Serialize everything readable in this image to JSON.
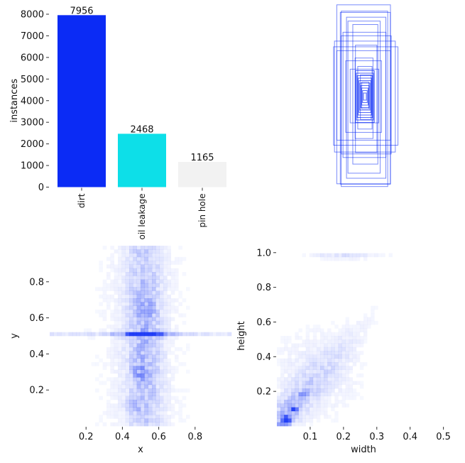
{
  "chart_data": [
    {
      "type": "bar",
      "categories": [
        "dirt",
        "oil leakage",
        "pin hole"
      ],
      "values": [
        7956,
        2468,
        1165
      ],
      "value_labels": [
        "7956",
        "2468",
        "1165"
      ],
      "colors": [
        "#0b2bf5",
        "#0ddfe8",
        "#f2f2f2"
      ],
      "xlabel": "",
      "ylabel": "instances",
      "ylim": [
        0,
        8000
      ],
      "yticks": [
        0,
        1000,
        2000,
        3000,
        4000,
        5000,
        6000,
        7000,
        8000
      ],
      "ytick_labels": [
        "0",
        "1000",
        "2000",
        "3000",
        "4000",
        "5000",
        "6000",
        "7000",
        "8000"
      ],
      "grid": false
    },
    {
      "type": "scatter",
      "description_kind": "box overlay",
      "color": "#0b2bf5",
      "boxes": [
        {
          "w": 0.3,
          "h": 1.0
        },
        {
          "w": 0.26,
          "h": 0.98
        },
        {
          "w": 0.28,
          "h": 0.96
        },
        {
          "w": 0.22,
          "h": 0.9
        },
        {
          "w": 0.18,
          "h": 0.85
        },
        {
          "w": 0.34,
          "h": 0.62
        },
        {
          "w": 0.36,
          "h": 0.55
        },
        {
          "w": 0.3,
          "h": 0.5
        },
        {
          "w": 0.24,
          "h": 0.7
        },
        {
          "w": 0.14,
          "h": 0.78
        },
        {
          "w": 0.12,
          "h": 0.6
        },
        {
          "w": 0.1,
          "h": 0.45
        },
        {
          "w": 0.08,
          "h": 0.35
        },
        {
          "w": 0.06,
          "h": 0.25
        },
        {
          "w": 0.2,
          "h": 0.4
        },
        {
          "w": 0.16,
          "h": 0.3
        },
        {
          "w": 0.04,
          "h": 0.15
        },
        {
          "w": 0.28,
          "h": 0.66
        }
      ]
    },
    {
      "type": "heatmap",
      "xlabel": "x",
      "ylabel": "y",
      "xlim": [
        0.0,
        1.0
      ],
      "ylim": [
        0.0,
        1.0
      ],
      "xticks": [
        0.2,
        0.4,
        0.6,
        0.8
      ],
      "xtick_labels": [
        "0.2",
        "0.4",
        "0.6",
        "0.8"
      ],
      "yticks": [
        0.2,
        0.4,
        0.6,
        0.8
      ],
      "ytick_labels": [
        "0.2",
        "0.4",
        "0.6",
        "0.8"
      ],
      "color": "#0b2bf5",
      "hotspots": [
        {
          "x": 0.52,
          "y": 0.51,
          "weight": 1.0
        },
        {
          "x": 0.5,
          "y": 0.3,
          "weight": 0.6
        },
        {
          "x": 0.54,
          "y": 0.64,
          "weight": 0.55
        },
        {
          "x": 0.47,
          "y": 0.12,
          "weight": 0.45
        }
      ]
    },
    {
      "type": "heatmap",
      "xlabel": "width",
      "ylabel": "height",
      "xlim": [
        0.0,
        0.52
      ],
      "ylim": [
        0.0,
        1.04
      ],
      "xticks": [
        0.1,
        0.2,
        0.3,
        0.4,
        0.5
      ],
      "xtick_labels": [
        "0.1",
        "0.2",
        "0.3",
        "0.4",
        "0.5"
      ],
      "yticks": [
        0.2,
        0.4,
        0.6,
        0.8,
        1.0
      ],
      "ytick_labels": [
        "0.2",
        "0.4",
        "0.6",
        "0.8",
        "1.0"
      ],
      "color": "#0b2bf5",
      "hotspots": [
        {
          "x": 0.028,
          "y": 0.035,
          "weight": 1.0
        },
        {
          "x": 0.05,
          "y": 0.1,
          "weight": 0.6
        },
        {
          "x": 0.08,
          "y": 0.18,
          "weight": 0.3
        },
        {
          "x": 0.2,
          "y": 0.98,
          "weight": 0.15
        }
      ]
    }
  ]
}
